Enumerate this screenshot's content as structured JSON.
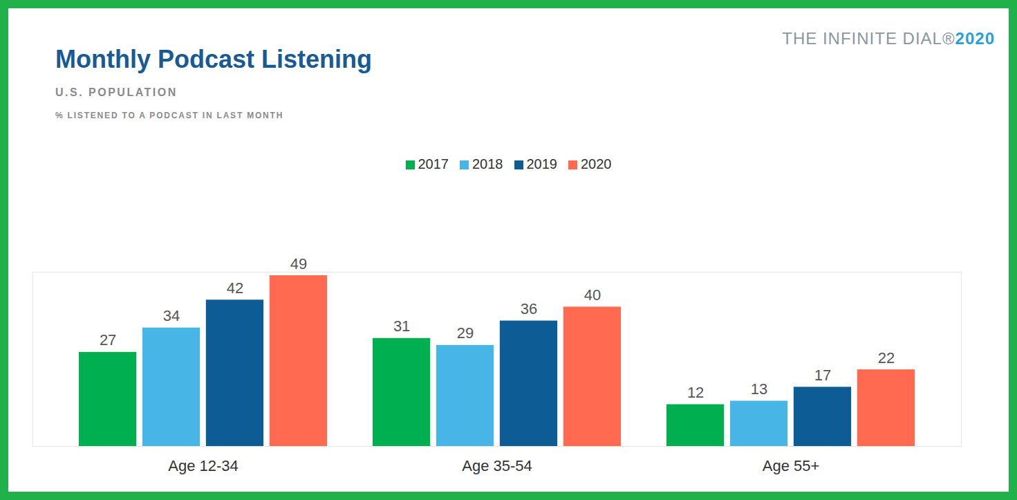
{
  "chart_data": {
    "type": "bar",
    "title": "Monthly Podcast Listening",
    "subtitle": "U.S. POPULATION",
    "ylabel": "% LISTENED TO A PODCAST IN LAST MONTH",
    "annotations": [
      "THE INFINITE DIAL® 2020"
    ],
    "categories": [
      "Age 12-34",
      "Age 35-54",
      "Age 55+"
    ],
    "series": [
      {
        "name": "2017",
        "color": "#00b050",
        "values": [
          27,
          31,
          12
        ]
      },
      {
        "name": "2018",
        "color": "#47b5e5",
        "values": [
          34,
          29,
          13
        ]
      },
      {
        "name": "2019",
        "color": "#0e5c96",
        "values": [
          42,
          36,
          17
        ]
      },
      {
        "name": "2020",
        "color": "#ff6a50",
        "values": [
          49,
          40,
          22
        ]
      }
    ],
    "ylim": [
      0,
      50
    ],
    "yticks": [],
    "grid": false,
    "legend": "top",
    "data_labels": true,
    "tick_labels": "x"
  }
}
